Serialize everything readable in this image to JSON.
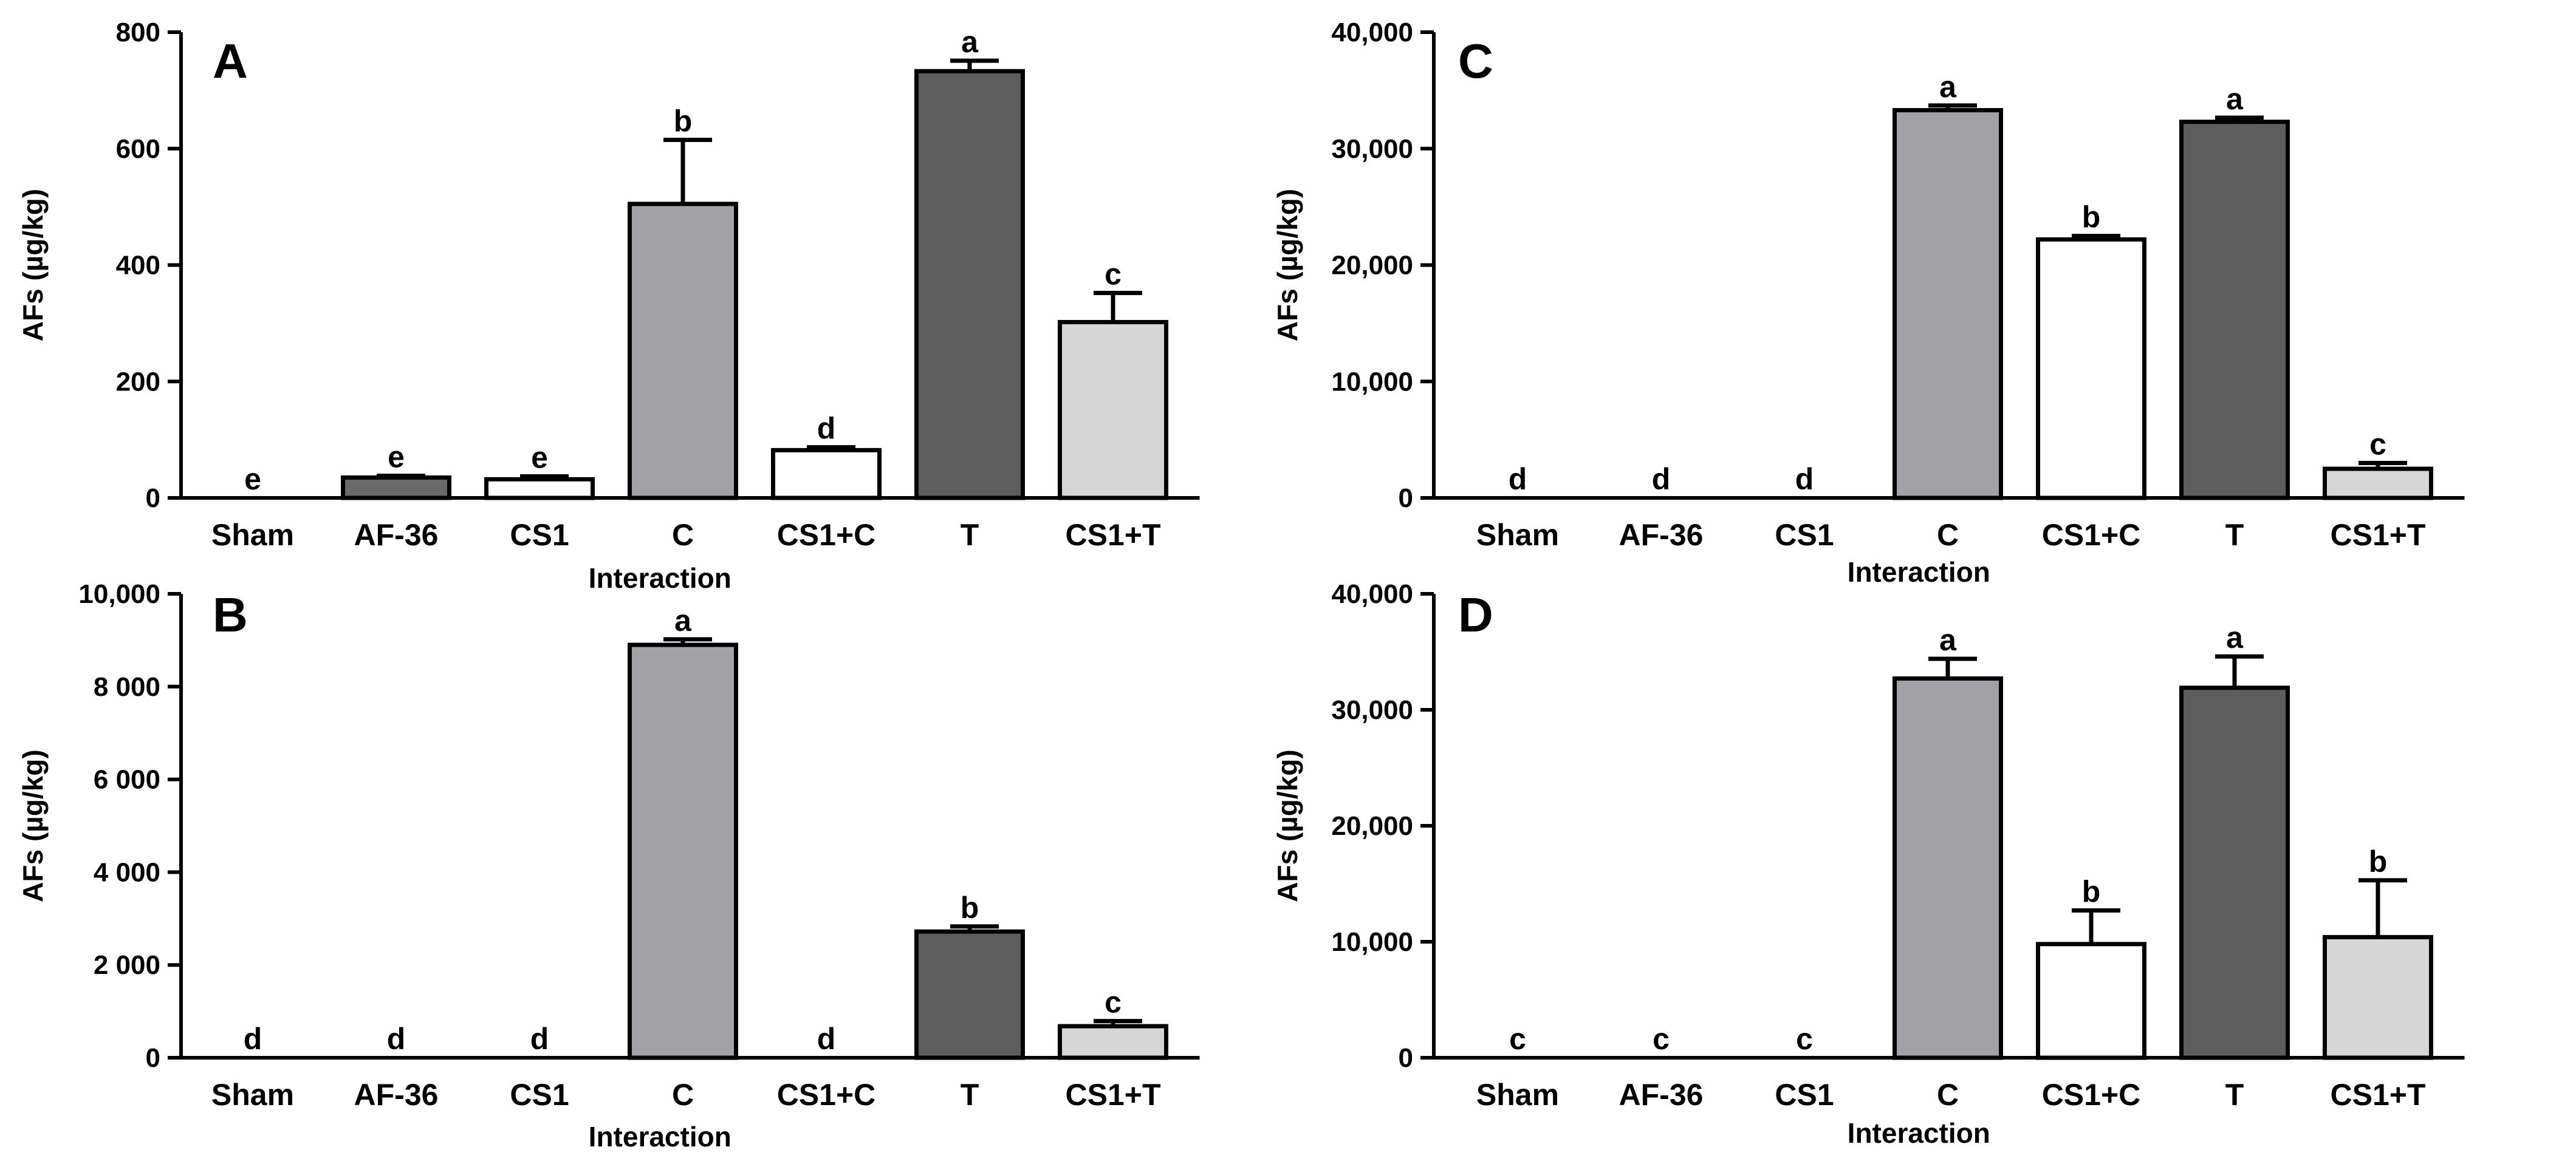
{
  "colors": {
    "Sham": "#ffffff",
    "AF-36": "#6a6a6a",
    "CS1": "#ffffff",
    "C": "#a2a2a6",
    "CS1+C": "#ffffff",
    "T": "#5d5d5d",
    "CS1+T": "#d6d6d6"
  },
  "chart_data": [
    {
      "type": "bar",
      "panel": "A",
      "ylabel": "AFs (µg/kg)",
      "xlabel": "Interaction",
      "ylim": [
        0,
        800
      ],
      "yticks": [
        0,
        200,
        400,
        600,
        800
      ],
      "ytick_labels": [
        "0",
        "200",
        "400",
        "600",
        "800"
      ],
      "categories": [
        "Sham",
        "AF-36",
        "CS1",
        "C",
        "CS1+C",
        "T",
        "CS1+T"
      ],
      "values": [
        0,
        35,
        32,
        505,
        82,
        733,
        302
      ],
      "errors": [
        0,
        3,
        5,
        110,
        5,
        18,
        50
      ],
      "significance": [
        "e",
        "e",
        "e",
        "b",
        "d",
        "a",
        "c"
      ]
    },
    {
      "type": "bar",
      "panel": "B",
      "ylabel": "AFs (µg/kg)",
      "xlabel": "Interaction",
      "ylim": [
        0,
        10000
      ],
      "yticks": [
        0,
        2000,
        4000,
        6000,
        8000,
        10000
      ],
      "ytick_labels": [
        "0",
        "2 000",
        "4 000",
        "6 000",
        "8 000",
        "10,000"
      ],
      "categories": [
        "Sham",
        "AF-36",
        "CS1",
        "C",
        "CS1+C",
        "T",
        "CS1+T"
      ],
      "values": [
        0,
        0,
        0,
        8900,
        0,
        2720,
        680
      ],
      "errors": [
        0,
        0,
        0,
        120,
        0,
        110,
        110
      ],
      "significance": [
        "d",
        "d",
        "d",
        "a",
        "d",
        "b",
        "c"
      ]
    },
    {
      "type": "bar",
      "panel": "C",
      "ylabel": "AFs (µg/kg)",
      "xlabel": "Interaction",
      "ylim": [
        0,
        40000
      ],
      "yticks": [
        0,
        10000,
        20000,
        30000,
        40000
      ],
      "ytick_labels": [
        "0",
        "10,000",
        "20,000",
        "30,000",
        "40,000"
      ],
      "categories": [
        "Sham",
        "AF-36",
        "CS1",
        "C",
        "CS1+C",
        "T",
        "CS1+T"
      ],
      "values": [
        0,
        0,
        0,
        33300,
        22200,
        32300,
        2500
      ],
      "errors": [
        0,
        0,
        0,
        400,
        300,
        350,
        500
      ],
      "significance": [
        "d",
        "d",
        "d",
        "a",
        "b",
        "a",
        "c"
      ]
    },
    {
      "type": "bar",
      "panel": "D",
      "ylabel": "AFs (µg/kg)",
      "xlabel": "Interaction",
      "ylim": [
        0,
        40000
      ],
      "yticks": [
        0,
        10000,
        20000,
        30000,
        40000
      ],
      "ytick_labels": [
        "0",
        "10,000",
        "20,000",
        "30,000",
        "40,000"
      ],
      "categories": [
        "Sham",
        "AF-36",
        "CS1",
        "C",
        "CS1+C",
        "T",
        "CS1+T"
      ],
      "values": [
        0,
        0,
        0,
        32700,
        9800,
        31900,
        10400
      ],
      "errors": [
        0,
        0,
        0,
        1700,
        2900,
        2700,
        4900
      ],
      "significance": [
        "c",
        "c",
        "c",
        "a",
        "b",
        "a",
        "b"
      ]
    }
  ]
}
